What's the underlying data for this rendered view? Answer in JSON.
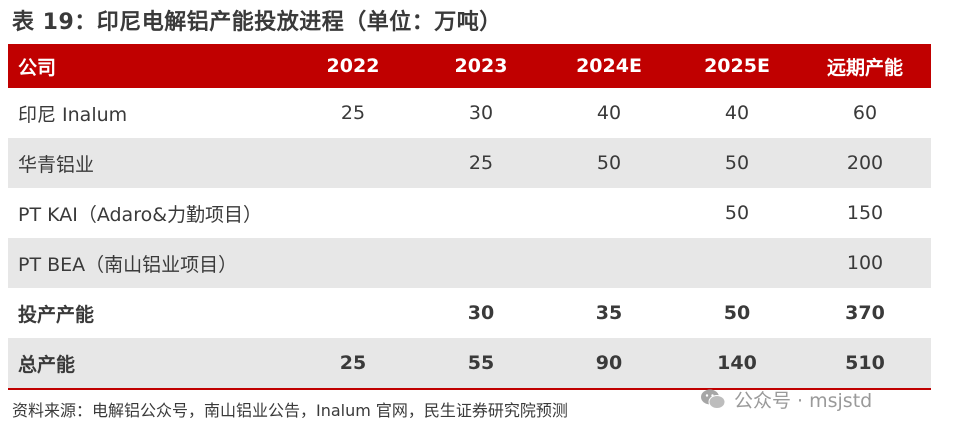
{
  "title": "表 19：印尼电解铝产能投放进程（单位：万吨）",
  "table": {
    "headers": [
      "公司",
      "2022",
      "2023",
      "2024E",
      "2025E",
      "远期产能"
    ],
    "rows": [
      [
        "印尼 Inalum",
        "25",
        "30",
        "40",
        "40",
        "60"
      ],
      [
        "华青铝业",
        "",
        "25",
        "50",
        "50",
        "200"
      ],
      [
        "PT KAI（Adaro&力勤项目）",
        "",
        "",
        "",
        "50",
        "150"
      ],
      [
        "PT BEA（南山铝业项目）",
        "",
        "",
        "",
        "",
        "100"
      ],
      [
        "投产产能",
        "",
        "30",
        "35",
        "50",
        "370"
      ],
      [
        "总产能",
        "25",
        "55",
        "90",
        "140",
        "510"
      ]
    ]
  },
  "source": "资料来源：电解铝公众号，南山铝业公告，Inalum 官网，民生证券研究院预测",
  "watermark": "公众号 · msjstd",
  "colors": {
    "header_bg": "#c00000",
    "alt_row_bg": "#e7e7e7",
    "text": "#3a3a3a"
  }
}
